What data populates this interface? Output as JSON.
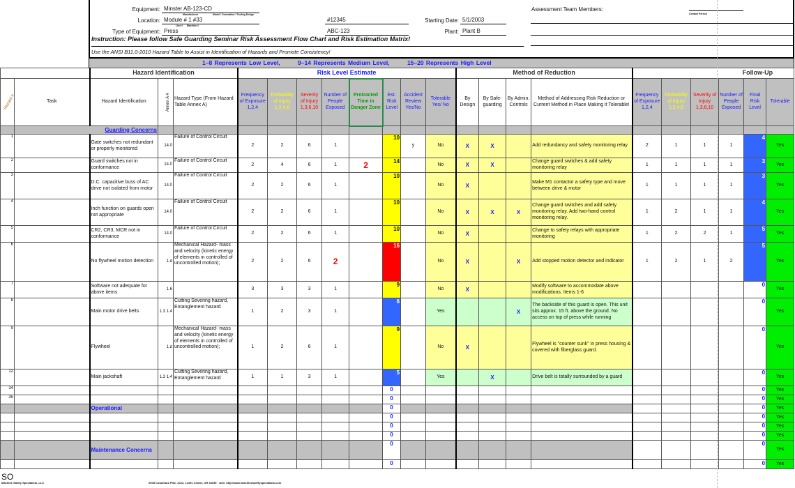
{
  "form": {
    "equipment_label": "Equipment:",
    "equipment_value": "Minster  AB-123-CD",
    "equipment_sub1": "Manufacturer",
    "equipment_sub2": "Model / Generation / Tooling Design",
    "location_label": "Location:",
    "location_value": "Module # 1   #33",
    "location_sub1": "Line #",
    "location_sub2": "Machine #",
    "type_label": "Type of Equipment:",
    "type_value": "Press",
    "field_mid1": "#12345",
    "field_mid2": "ABC-123",
    "start_label": "Starting Date:",
    "start_value": "5/1/2003",
    "plant_label": "Plant:",
    "plant_value": "Plant B",
    "team_label": "Assessment Team Members:",
    "contact_label": "Contact Person",
    "instruction": "Instruction: Please follow Safe Guarding Seminar Risk Assessment Flow Chart and Risk Estimation Matrix!",
    "instruction2": "Use the ANSI B11.0-2010 Hazard Table to Assist in Identification of Hazards and Promote Consistency!"
  },
  "legend_band": [
    "1–8 Represents Low Level,",
    "9–14 Represents Medium Level,",
    "15–20 Represents High Level"
  ],
  "sections": {
    "hazard_identification": "Hazard Identification",
    "risk_level_estimate": "Risk Level Estimate",
    "method_of_reduction": "Method of Reduction",
    "follow_up": "Follow-Up"
  },
  "columns": {
    "hazard_num": "Hazard #",
    "task": "Task",
    "hazard_id": "Hazard Identification",
    "annex": "Annex A #",
    "hazard_type": "Hazard Type (From Hazard Table Annex A)",
    "freq": "Frequency of Exposure 1,2,4",
    "prob": "Probability of Injury 1,2,4,6",
    "sev": "Severity of Injury 1,3,6,10",
    "people": "Number of People Exposed",
    "protracted": "Protracted Time in Danger Zone",
    "est": "Est. Risk Level",
    "accident": "Accident Review Yes/No",
    "tolerable": "Tolerable Yes/ No",
    "by_design": "By Design",
    "by_safeguarding": "By Safe-guarding",
    "by_admin": "By Admin. Controls",
    "method": "Method of Addressing Risk Reduction or Current Method in Place Making it Tolerable!",
    "f_freq": "Frequency of Exposure 1,2,4",
    "f_prob": "Probability of Injury 1,2,4,6",
    "f_sev": "Severity of Injury 1,3,6,10",
    "f_people": "Number of People Exposed",
    "final": "Final Risk Level",
    "f_tolerable": "Tolerable"
  },
  "colors": {
    "low": "#3366ff",
    "medium": "#ffff00",
    "high": "#ff0000",
    "tolerable_yes": "#00ee00",
    "header_text": "#1a1aff"
  },
  "rows": [
    {
      "kind": "section",
      "label": "Guarding Concerns"
    },
    {
      "n": "1",
      "task": "",
      "hazard": "Gate switches not redundant or properly monitored",
      "annex": "14.0",
      "type": "Failure of Control Circuit",
      "freq": "2",
      "prob": "2",
      "sev": "6",
      "people": "1",
      "prot": "",
      "est": "10",
      "level": "medium",
      "acc": "y",
      "tol": "No",
      "d": "X",
      "s": "X",
      "a": "",
      "method": "Add redundancy and safety monitoring relay",
      "ff": "2",
      "fp": "1",
      "fs": "1",
      "fpe": "1",
      "final": "4",
      "final_level": "low",
      "ftol": "Yes"
    },
    {
      "n": "2",
      "task": "",
      "hazard": "Guard switches not in conformance",
      "annex": "14.0",
      "type": "Failure of Control Circuit",
      "freq": "2",
      "prob": "4",
      "sev": "6",
      "people": "1",
      "prot": "2",
      "est": "14",
      "level": "medium",
      "acc": "",
      "tol": "No",
      "d": "X",
      "s": "X",
      "a": "",
      "method": "Change guard switches & add safety monitoring relay",
      "ff": "1",
      "fp": "1",
      "fs": "1",
      "fpe": "1",
      "final": "3",
      "final_level": "low",
      "ftol": "Yes"
    },
    {
      "n": "3",
      "task": "",
      "hazard": "D.C. capacitive buss of AC drive not isolated from motor",
      "annex": "14.0",
      "type": "Failure of Control Circuit",
      "freq": "2",
      "prob": "2",
      "sev": "6",
      "people": "1",
      "prot": "",
      "est": "10",
      "level": "medium",
      "acc": "",
      "tol": "No",
      "d": "X",
      "s": "",
      "a": "",
      "method": "Make M1 contactor a safety type and move between drive & motor",
      "ff": "1",
      "fp": "1",
      "fs": "1",
      "fpe": "1",
      "final": "3",
      "final_level": "low",
      "ftol": "Yes"
    },
    {
      "n": "4",
      "task": "",
      "hazard": "Inch function on guards open not appropriate",
      "annex": "14.0",
      "type": "Failure of Control Circuit",
      "freq": "2",
      "prob": "2",
      "sev": "6",
      "people": "1",
      "prot": "",
      "est": "10",
      "level": "medium",
      "acc": "",
      "tol": "No",
      "d": "X",
      "s": "X",
      "a": "X",
      "method": "Change guard switches and add safety monitoring relay.  Add two-hand control monitoring relay.",
      "ff": "1",
      "fp": "2",
      "fs": "1",
      "fpe": "1",
      "final": "4",
      "final_level": "low",
      "ftol": "Yes"
    },
    {
      "n": "5",
      "task": "",
      "hazard": "CR2, CR3, MCR not in conformance",
      "annex": "14.0",
      "type": "Failure of Control Circuit",
      "freq": "2",
      "prob": "2",
      "sev": "6",
      "people": "1",
      "prot": "",
      "est": "10",
      "level": "medium",
      "acc": "",
      "tol": "No",
      "d": "X",
      "s": "",
      "a": "",
      "method": "Change to safety relays with appropriate monitoring",
      "ff": "1",
      "fp": "2",
      "fs": "2",
      "fpe": "1",
      "final": "5",
      "final_level": "low",
      "ftol": "Yes"
    },
    {
      "n": "6",
      "task": "",
      "hazard": "No flywheel motion detection",
      "annex": "1.d",
      "type": "Mechanical Hazard- mass and velocity (kinetic energy of elements in controlled of uncontrolled motion);",
      "freq": "2",
      "prob": "2",
      "sev": "6",
      "people": "2",
      "people_flag": true,
      "prot": "",
      "est": "16",
      "level": "high",
      "acc": "",
      "tol": "No",
      "d": "X",
      "s": "",
      "a": "X",
      "method": "Add stopped motion detector and indicator",
      "ff": "1",
      "fp": "2",
      "fs": "1",
      "fpe": "2",
      "final": "5",
      "final_level": "low",
      "ftol": "Yes"
    },
    {
      "n": "7",
      "task": "",
      "hazard": "Software not adequate for above items",
      "annex": "1.6",
      "type": "",
      "freq": "3",
      "prob": "3",
      "sev": "3",
      "people": "1",
      "prot": "",
      "est": "9",
      "level": "medium",
      "acc": "",
      "tol": "No",
      "d": "X",
      "s": "",
      "a": "",
      "method": "Modify software to accommodate above modifications. Items 1-6",
      "ff": "",
      "fp": "",
      "fs": "",
      "fpe": "",
      "final": "0",
      "final_level": "none",
      "ftol": "Yes"
    },
    {
      "n": "8",
      "task": "",
      "hazard": "Main motor drive belts",
      "annex": "1.3 1.4",
      "type": "Cutting Severing hazard, Entanglement hazard",
      "freq": "1",
      "prob": "2",
      "sev": "3",
      "people": "1",
      "prot": "",
      "est": "6",
      "level": "low",
      "acc": "",
      "tol": "Yes",
      "d": "",
      "s": "",
      "a": "X",
      "method": "The backside of this guard is open.  This unit sits approx. 15 ft. above the ground. No access on top of press while running",
      "ff": "",
      "fp": "",
      "fs": "",
      "fpe": "",
      "final": "0",
      "final_level": "none",
      "ftol": "Yes"
    },
    {
      "n": "9",
      "task": "",
      "hazard": "Flywheel",
      "annex": "1.d",
      "type": "Mechanical Hazard- mass and velocity (kinetic energy of elements in controlled of uncontrolled motion);",
      "freq": "1",
      "prob": "2",
      "sev": "6",
      "people": "1",
      "prot": "",
      "est": "9",
      "level": "medium",
      "acc": "",
      "tol": "No",
      "d": "X",
      "s": "",
      "a": "",
      "method": "Flywheel is \"counter sunk\" in press housing & covered with fiberglass guard.",
      "ff": "",
      "fp": "",
      "fs": "",
      "fpe": "",
      "final": "0",
      "final_level": "none",
      "ftol": "Yes"
    },
    {
      "n": "12",
      "task": "",
      "hazard": "Main jackshaft",
      "annex": "1.3 1.4",
      "type": "Cutting Severing hazard, Entanglement hazard",
      "freq": "1",
      "prob": "1",
      "sev": "3",
      "people": "1",
      "prot": "",
      "est": "5",
      "level": "low",
      "acc": "",
      "tol": "Yes",
      "d": "",
      "s": "X",
      "a": "",
      "method": "Drive belt is totally surrounded by a guard",
      "ff": "",
      "fp": "",
      "fs": "",
      "fpe": "",
      "final": "0",
      "final_level": "none",
      "ftol": "Yes"
    },
    {
      "kind": "empty",
      "n": "34",
      "est": "0",
      "final": "0",
      "ftol": "Yes"
    },
    {
      "kind": "empty",
      "n": "35",
      "est": "0",
      "final": "0",
      "ftol": "Yes"
    },
    {
      "kind": "subsection",
      "label": "Operational",
      "est": "0",
      "final": "0",
      "ftol": "Yes"
    },
    {
      "kind": "empty",
      "n": "",
      "est": "0",
      "final": "0",
      "ftol": "Yes"
    },
    {
      "kind": "empty",
      "n": "",
      "est": "0",
      "final": "0",
      "ftol": "Yes"
    },
    {
      "kind": "empty",
      "n": "",
      "est": "0",
      "final": "0",
      "ftol": "Yes"
    },
    {
      "kind": "subsection",
      "label": "Maintenance Concerns",
      "est": "0",
      "final": "0",
      "ftol": "Yes"
    },
    {
      "kind": "empty",
      "n": "",
      "est": "0",
      "final": "0",
      "ftol": "Yes"
    }
  ],
  "footer": {
    "logo": "SO",
    "company": "Machine Safety Specialists, LLC",
    "address": "6945 Columbus Pike, #222, Lewis Center, OH 43035 · web: http://www.machinesafetyspecialists.com"
  }
}
